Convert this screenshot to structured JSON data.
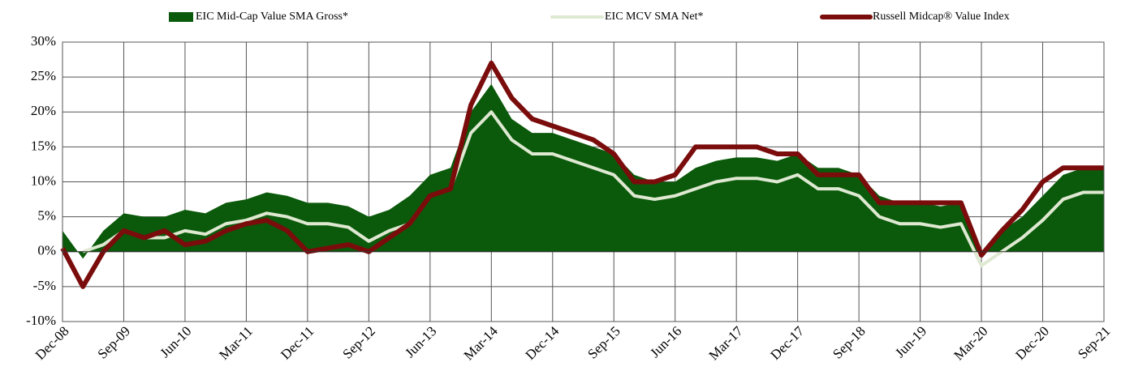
{
  "chart_data": {
    "type": "line",
    "categories": [
      "Dec-08",
      null,
      null,
      "Sep-09",
      null,
      null,
      "Jun-10",
      null,
      null,
      "Mar-11",
      null,
      null,
      "Dec-11",
      null,
      null,
      "Sep-12",
      null,
      null,
      "Jun-13",
      null,
      null,
      "Mar-14",
      null,
      null,
      "Dec-14",
      null,
      null,
      "Sep-15",
      null,
      null,
      "Jun-16",
      null,
      null,
      "Mar-17",
      null,
      null,
      "Dec-17",
      null,
      null,
      "Sep-18",
      null,
      null,
      "Jun-19",
      null,
      null,
      "Mar-20",
      null,
      null,
      "Dec-20",
      null,
      null,
      "Sep-21"
    ],
    "series": [
      {
        "name": "EIC Mid-Cap Value SMA Gross*",
        "color": "#0b5a0b",
        "style": "area",
        "values": [
          3,
          -1,
          3,
          5.5,
          5,
          5,
          6,
          5.5,
          7,
          7.5,
          8.5,
          8,
          7,
          7,
          6.5,
          5,
          6,
          8,
          11,
          12,
          20,
          24,
          19,
          17,
          17,
          16,
          15,
          14,
          11,
          10,
          10,
          12,
          13,
          13.5,
          13.5,
          13,
          14,
          12,
          12,
          11,
          8,
          7,
          7,
          6.5,
          7,
          -0.5,
          3,
          5,
          8,
          11,
          12,
          12
        ]
      },
      {
        "name": "EIC MCV SMA  Net*",
        "color": "#dfe9d2",
        "style": "line",
        "values": [
          null,
          0,
          1,
          3,
          2,
          2,
          3,
          2.5,
          4,
          4.5,
          5.5,
          5,
          4,
          4,
          3.5,
          1.5,
          3,
          4,
          8,
          9,
          17,
          20,
          16,
          14,
          14,
          13,
          12,
          11,
          8,
          7.5,
          8,
          9,
          10,
          10.5,
          10.5,
          10,
          11,
          9,
          9,
          8,
          5,
          4,
          4,
          3.5,
          4,
          -2,
          0,
          2,
          4.5,
          7.5,
          8.5,
          8.5
        ]
      },
      {
        "name": "Russell Midcap® Value Index",
        "color": "#7a0c0c",
        "style": "line",
        "values": [
          0.5,
          -5,
          0,
          3,
          2,
          3,
          1,
          1.5,
          3,
          4,
          4.5,
          3,
          0,
          0.5,
          1,
          0,
          2,
          4,
          8,
          9,
          21,
          27,
          22,
          19,
          18,
          17,
          16,
          14,
          10,
          10,
          11,
          15,
          15,
          15,
          15,
          14,
          14,
          11,
          11,
          11,
          7,
          7,
          7,
          7,
          7,
          -0.5,
          3,
          6,
          10,
          12,
          12,
          12
        ]
      }
    ],
    "ylim": [
      -10,
      30
    ],
    "yticks": [
      {
        "value": -10,
        "label": "-10%"
      },
      {
        "value": -5,
        "label": "-5%"
      },
      {
        "value": 0,
        "label": "0%"
      },
      {
        "value": 5,
        "label": "5%"
      },
      {
        "value": 10,
        "label": "10%"
      },
      {
        "value": 15,
        "label": "15%"
      },
      {
        "value": 20,
        "label": "20%"
      },
      {
        "value": 25,
        "label": "25%"
      },
      {
        "value": 30,
        "label": "30%"
      }
    ],
    "grid": true,
    "legend": "top"
  }
}
